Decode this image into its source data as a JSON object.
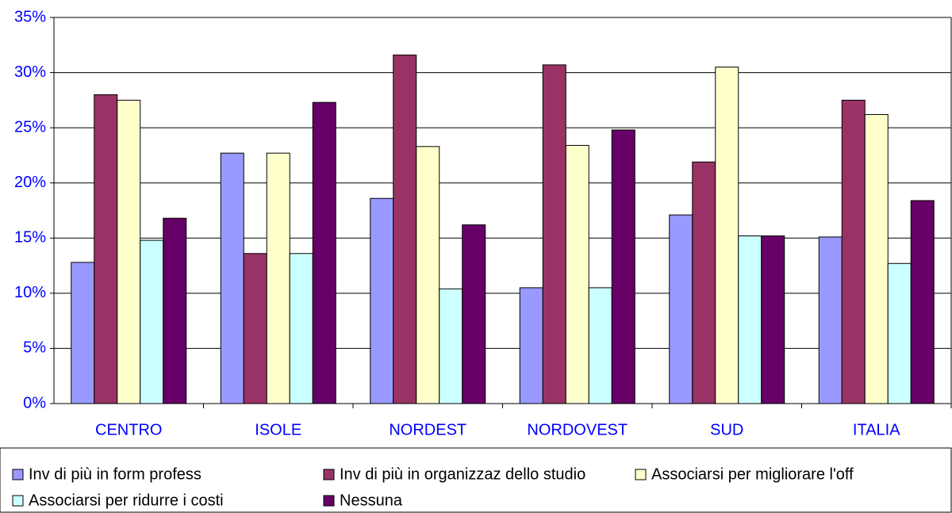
{
  "chart_data": {
    "type": "bar",
    "categories": [
      "CENTRO",
      "ISOLE",
      "NORDEST",
      "NORDOVEST",
      "SUD",
      "ITALIA"
    ],
    "series": [
      {
        "name": "Inv di più in form profess",
        "color": "#9999ff",
        "values": [
          12.8,
          22.7,
          18.6,
          10.5,
          17.1,
          15.1
        ]
      },
      {
        "name": "Inv di più in organizzaz dello studio",
        "color": "#993366",
        "values": [
          28.0,
          13.6,
          31.6,
          30.7,
          21.9,
          27.5
        ]
      },
      {
        "name": "Associarsi per migliorare l'off",
        "color": "#ffffcc",
        "values": [
          27.5,
          22.7,
          23.3,
          23.4,
          30.5,
          26.2
        ]
      },
      {
        "name": "Associarsi per ridurre i costi",
        "color": "#ccffff",
        "values": [
          14.8,
          13.6,
          10.4,
          10.5,
          15.2,
          12.7
        ]
      },
      {
        "name": "Nessuna",
        "color": "#660066",
        "values": [
          16.8,
          27.3,
          16.2,
          24.8,
          15.2,
          18.4
        ]
      }
    ],
    "ylim": [
      0,
      35
    ],
    "yticks": [
      {
        "value": 0,
        "label": "0%"
      },
      {
        "value": 5,
        "label": "5%"
      },
      {
        "value": 10,
        "label": "10%"
      },
      {
        "value": 15,
        "label": "15%"
      },
      {
        "value": 20,
        "label": "20%"
      },
      {
        "value": 25,
        "label": "25%"
      },
      {
        "value": 30,
        "label": "30%"
      },
      {
        "value": 35,
        "label": "35%"
      }
    ],
    "grid": true,
    "legend": "bottom"
  }
}
